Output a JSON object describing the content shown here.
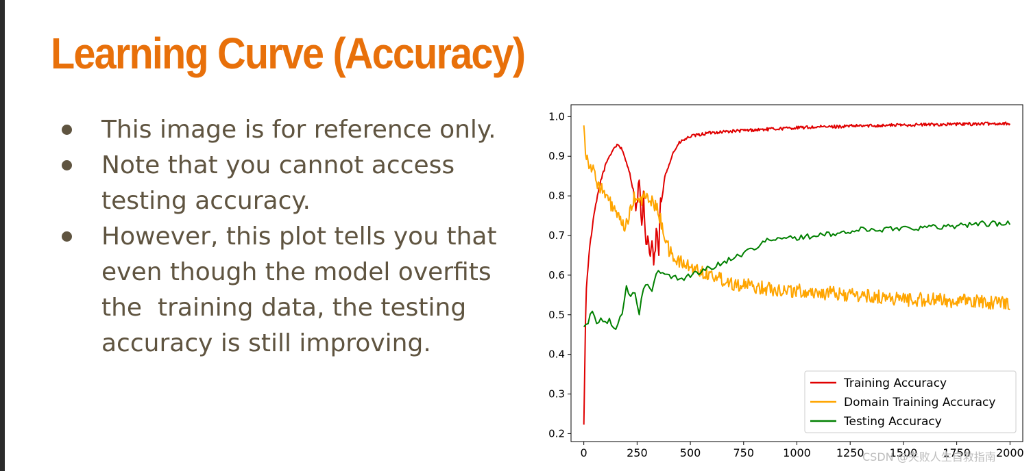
{
  "slide": {
    "title": "Learning Curve (Accuracy)",
    "bullets": [
      "This image is for reference only.",
      "Note that you cannot access testing accuracy.",
      "However, this plot tells you that even though the model overfits the  training data, the testing accuracy is still improving."
    ],
    "watermark": "CSDN @失败人生自救指南"
  },
  "colors": {
    "title": "#e8700a",
    "body_text": "#5f5440",
    "training": "#e00000",
    "domain": "#ffa500",
    "testing": "#008000"
  },
  "chart_data": {
    "type": "line",
    "title": "",
    "xlabel": "",
    "ylabel": "",
    "xlim": [
      -60,
      2060
    ],
    "ylim": [
      0.18,
      1.03
    ],
    "xticks": [
      "0",
      "250",
      "500",
      "750",
      "1000",
      "1250",
      "1500",
      "1750",
      "2000"
    ],
    "yticks": [
      "0.2",
      "0.3",
      "0.4",
      "0.5",
      "0.6",
      "0.7",
      "0.8",
      "0.9",
      "1.0"
    ],
    "legend_position": "lower-right",
    "grid": false,
    "series": [
      {
        "name": "Training Accuracy",
        "color": "#e00000",
        "x": [
          0,
          10,
          25,
          50,
          80,
          110,
          140,
          160,
          175,
          190,
          210,
          230,
          250,
          260,
          270,
          280,
          290,
          300,
          310,
          320,
          330,
          340,
          350,
          360,
          370,
          380,
          400,
          420,
          450,
          500,
          600,
          750,
          1000,
          1250,
          1500,
          1750,
          2000
        ],
        "y": [
          0.22,
          0.55,
          0.66,
          0.76,
          0.84,
          0.89,
          0.92,
          0.93,
          0.92,
          0.9,
          0.87,
          0.82,
          0.76,
          0.86,
          0.7,
          0.79,
          0.66,
          0.71,
          0.64,
          0.69,
          0.61,
          0.72,
          0.64,
          0.78,
          0.8,
          0.85,
          0.88,
          0.91,
          0.935,
          0.95,
          0.96,
          0.965,
          0.972,
          0.976,
          0.979,
          0.981,
          0.983
        ]
      },
      {
        "name": "Domain Training Accuracy",
        "color": "#ffa500",
        "x": [
          0,
          10,
          30,
          60,
          100,
          150,
          180,
          200,
          220,
          240,
          260,
          280,
          300,
          320,
          340,
          360,
          380,
          400,
          430,
          460,
          500,
          550,
          600,
          700,
          800,
          1000,
          1250,
          1500,
          1750,
          2000
        ],
        "y": [
          0.99,
          0.9,
          0.88,
          0.84,
          0.8,
          0.76,
          0.72,
          0.73,
          0.76,
          0.8,
          0.78,
          0.8,
          0.79,
          0.79,
          0.77,
          0.74,
          0.7,
          0.66,
          0.64,
          0.63,
          0.62,
          0.61,
          0.6,
          0.58,
          0.57,
          0.56,
          0.55,
          0.54,
          0.535,
          0.53
        ]
      },
      {
        "name": "Testing Accuracy",
        "color": "#008000",
        "x": [
          0,
          20,
          40,
          60,
          80,
          100,
          120,
          140,
          160,
          180,
          200,
          220,
          240,
          260,
          280,
          300,
          320,
          340,
          360,
          380,
          400,
          450,
          500,
          550,
          600,
          650,
          700,
          750,
          800,
          850,
          900,
          1000,
          1100,
          1200,
          1250,
          1300,
          1400,
          1500,
          1600,
          1750,
          1850,
          2000
        ],
        "y": [
          0.47,
          0.48,
          0.51,
          0.48,
          0.49,
          0.48,
          0.49,
          0.46,
          0.48,
          0.5,
          0.57,
          0.54,
          0.56,
          0.5,
          0.57,
          0.58,
          0.56,
          0.6,
          0.61,
          0.6,
          0.6,
          0.59,
          0.6,
          0.61,
          0.62,
          0.63,
          0.645,
          0.655,
          0.67,
          0.685,
          0.69,
          0.695,
          0.7,
          0.705,
          0.71,
          0.715,
          0.715,
          0.72,
          0.72,
          0.725,
          0.73,
          0.73
        ]
      }
    ]
  }
}
